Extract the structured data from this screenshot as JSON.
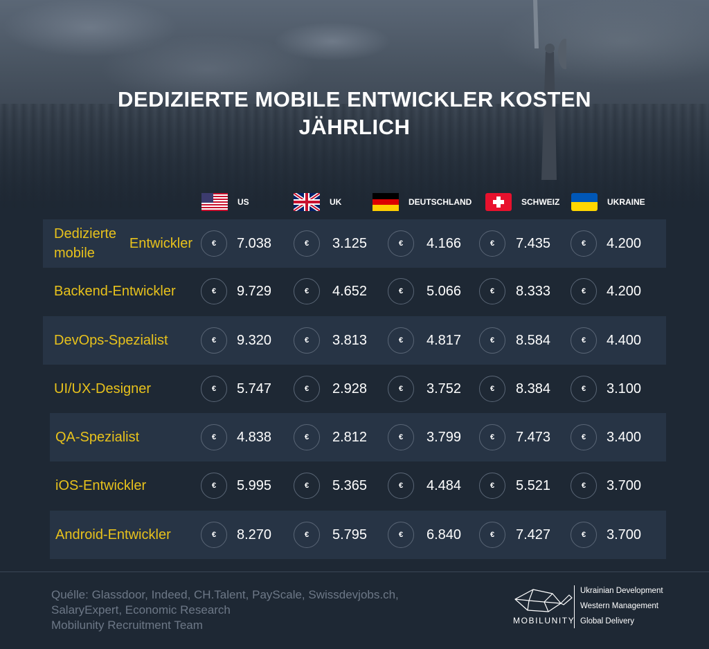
{
  "title_line1": "DEDIZIERTE MOBILE ENTWICKLER KOSTEN",
  "title_line2": "JÄHRLICH",
  "currency_symbol": "€",
  "countries": [
    {
      "label": "US",
      "flag": "us-flag-icon"
    },
    {
      "label": "UK",
      "flag": "uk-flag-icon"
    },
    {
      "label": "DEUTSCHLAND",
      "flag": "germany-flag-icon"
    },
    {
      "label": "SCHWEIZ",
      "flag": "switzerland-flag-icon"
    },
    {
      "label": "UKRAINE",
      "flag": "ukraine-flag-icon"
    }
  ],
  "rows": [
    {
      "role_line1": "Dedizierte mobile",
      "role_line2": "Entwickler",
      "values": [
        "7.038",
        "3.125",
        "4.166",
        "7.435",
        "4.200"
      ]
    },
    {
      "role_line1": "Backend-Entwickler",
      "role_line2": "",
      "values": [
        "9.729",
        "4.652",
        "5.066",
        "8.333",
        "4.200"
      ]
    },
    {
      "role_line1": "DevOps-Spezialist",
      "role_line2": "",
      "values": [
        "9.320",
        "3.813",
        "4.817",
        "8.584",
        "4.400"
      ]
    },
    {
      "role_line1": "UI/UX-Designer",
      "role_line2": "",
      "values": [
        "5.747",
        "2.928",
        "3.752",
        "8.384",
        "3.100"
      ]
    },
    {
      "role_line1": "QA-Spezialist",
      "role_line2": "",
      "values": [
        "4.838",
        "2.812",
        "3.799",
        "7.473",
        "3.400"
      ]
    },
    {
      "role_line1": "iOS-Entwickler",
      "role_line2": "",
      "values": [
        "5.995",
        "5.365",
        "4.484",
        "5.521",
        "3.700"
      ]
    },
    {
      "role_line1": "Android-Entwickler",
      "role_line2": "",
      "values": [
        "8.270",
        "5.795",
        "6.840",
        "7.427",
        "3.700"
      ]
    }
  ],
  "sources": {
    "line1": "Quélle:  Glassdoor, Indeed, CH.Talent,  PayScale, Swissdevjobs.ch,",
    "line2": "SalaryExpert, Economic Research",
    "line3": "Mobilunity Recruitment Team"
  },
  "logo": {
    "name": "MOBILUNITY",
    "icon": "whale-logo-icon",
    "tagline1": "Ukrainian Development",
    "tagline2": "Western Management",
    "tagline3": "Global Delivery"
  },
  "colors": {
    "background": "#1e2834",
    "stripe": "#273445",
    "accent_yellow": "#e8c21c",
    "muted_text": "#6d7887"
  }
}
